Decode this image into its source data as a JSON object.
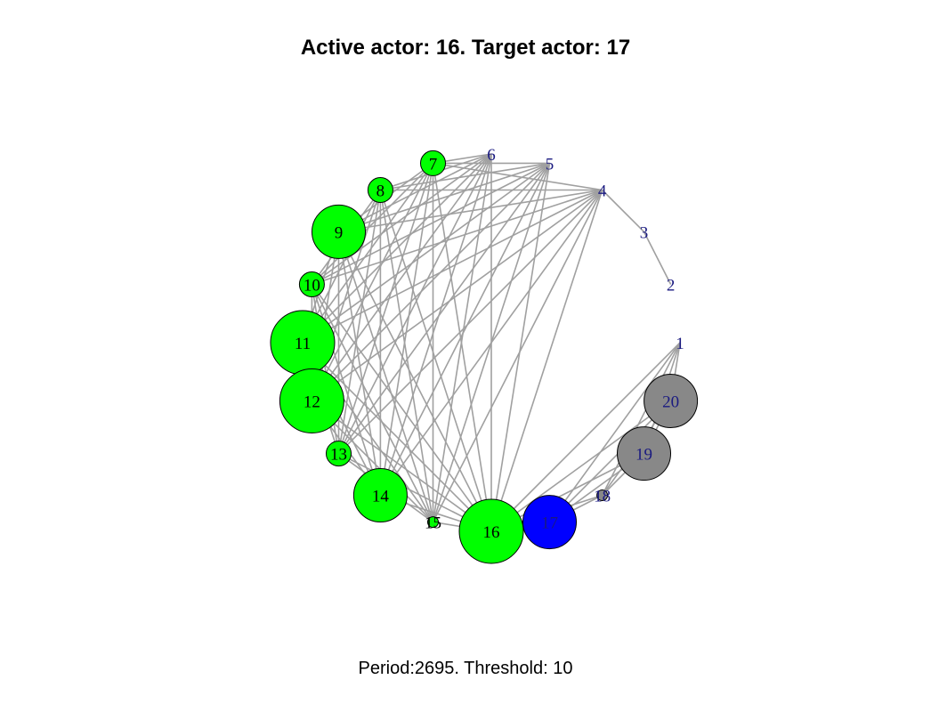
{
  "title": "Active actor: 16. Target actor: 17",
  "caption": "Period:2695. Threshold: 10",
  "colors": {
    "edge": "#a0a0a0",
    "label": "#1a1a80",
    "active": "#00ff00",
    "target": "#0000ff",
    "inactive": "#888888",
    "outline": "#000000"
  },
  "nodes": [
    {
      "id": "1",
      "label": "1",
      "size": 0,
      "state": "none"
    },
    {
      "id": "2",
      "label": "2",
      "size": 0,
      "state": "none"
    },
    {
      "id": "3",
      "label": "3",
      "size": 0,
      "state": "none"
    },
    {
      "id": "4",
      "label": "4",
      "size": 0,
      "state": "none"
    },
    {
      "id": "5",
      "label": "5",
      "size": 0,
      "state": "none"
    },
    {
      "id": "6",
      "label": "6",
      "size": 0,
      "state": "none"
    },
    {
      "id": "7",
      "label": "7",
      "size": 1,
      "state": "active"
    },
    {
      "id": "8",
      "label": "8",
      "size": 1,
      "state": "active"
    },
    {
      "id": "9",
      "label": "9",
      "size": 3,
      "state": "active"
    },
    {
      "id": "10",
      "label": "10",
      "size": 1,
      "state": "active"
    },
    {
      "id": "11",
      "label": "11",
      "size": 4,
      "state": "active"
    },
    {
      "id": "12",
      "label": "12",
      "size": 4,
      "state": "active"
    },
    {
      "id": "13",
      "label": "13",
      "size": 1,
      "state": "active"
    },
    {
      "id": "14",
      "label": "14",
      "size": 3,
      "state": "active"
    },
    {
      "id": "15",
      "label": "15",
      "size": 0.5,
      "state": "active"
    },
    {
      "id": "16",
      "label": "16",
      "size": 4,
      "state": "active"
    },
    {
      "id": "17",
      "label": "17",
      "size": 3,
      "state": "target"
    },
    {
      "id": "18",
      "label": "18",
      "size": 0.5,
      "state": "inactive"
    },
    {
      "id": "19",
      "label": "19",
      "size": 3,
      "state": "inactive"
    },
    {
      "id": "20",
      "label": "20",
      "size": 3,
      "state": "inactive"
    }
  ],
  "edges": [
    [
      "2",
      "3"
    ],
    [
      "3",
      "4"
    ],
    [
      "4",
      "7"
    ],
    [
      "4",
      "8"
    ],
    [
      "4",
      "9"
    ],
    [
      "4",
      "10"
    ],
    [
      "4",
      "11"
    ],
    [
      "4",
      "12"
    ],
    [
      "4",
      "13"
    ],
    [
      "4",
      "14"
    ],
    [
      "4",
      "15"
    ],
    [
      "4",
      "16"
    ],
    [
      "5",
      "7"
    ],
    [
      "5",
      "8"
    ],
    [
      "5",
      "9"
    ],
    [
      "5",
      "10"
    ],
    [
      "5",
      "11"
    ],
    [
      "5",
      "12"
    ],
    [
      "5",
      "13"
    ],
    [
      "5",
      "14"
    ],
    [
      "5",
      "15"
    ],
    [
      "5",
      "16"
    ],
    [
      "6",
      "7"
    ],
    [
      "6",
      "8"
    ],
    [
      "6",
      "9"
    ],
    [
      "6",
      "10"
    ],
    [
      "6",
      "11"
    ],
    [
      "6",
      "12"
    ],
    [
      "6",
      "13"
    ],
    [
      "6",
      "14"
    ],
    [
      "6",
      "15"
    ],
    [
      "6",
      "16"
    ],
    [
      "7",
      "9"
    ],
    [
      "7",
      "10"
    ],
    [
      "7",
      "11"
    ],
    [
      "7",
      "12"
    ],
    [
      "7",
      "13"
    ],
    [
      "7",
      "14"
    ],
    [
      "7",
      "15"
    ],
    [
      "7",
      "16"
    ],
    [
      "8",
      "10"
    ],
    [
      "8",
      "11"
    ],
    [
      "8",
      "12"
    ],
    [
      "8",
      "13"
    ],
    [
      "8",
      "14"
    ],
    [
      "8",
      "15"
    ],
    [
      "8",
      "16"
    ],
    [
      "9",
      "11"
    ],
    [
      "9",
      "12"
    ],
    [
      "9",
      "13"
    ],
    [
      "9",
      "14"
    ],
    [
      "9",
      "15"
    ],
    [
      "9",
      "16"
    ],
    [
      "10",
      "12"
    ],
    [
      "10",
      "13"
    ],
    [
      "10",
      "14"
    ],
    [
      "10",
      "15"
    ],
    [
      "10",
      "16"
    ],
    [
      "11",
      "13"
    ],
    [
      "11",
      "14"
    ],
    [
      "11",
      "15"
    ],
    [
      "11",
      "16"
    ],
    [
      "12",
      "14"
    ],
    [
      "12",
      "15"
    ],
    [
      "12",
      "16"
    ],
    [
      "13",
      "15"
    ],
    [
      "13",
      "16"
    ],
    [
      "14",
      "16"
    ],
    [
      "15",
      "16"
    ],
    [
      "1",
      "16"
    ],
    [
      "1",
      "17"
    ],
    [
      "1",
      "18"
    ],
    [
      "1",
      "19"
    ],
    [
      "1",
      "20"
    ],
    [
      "16",
      "17"
    ],
    [
      "16",
      "18"
    ],
    [
      "16",
      "19"
    ],
    [
      "16",
      "20"
    ],
    [
      "17",
      "18"
    ],
    [
      "17",
      "19"
    ],
    [
      "17",
      "20"
    ],
    [
      "18",
      "19"
    ],
    [
      "18",
      "20"
    ],
    [
      "19",
      "20"
    ]
  ]
}
